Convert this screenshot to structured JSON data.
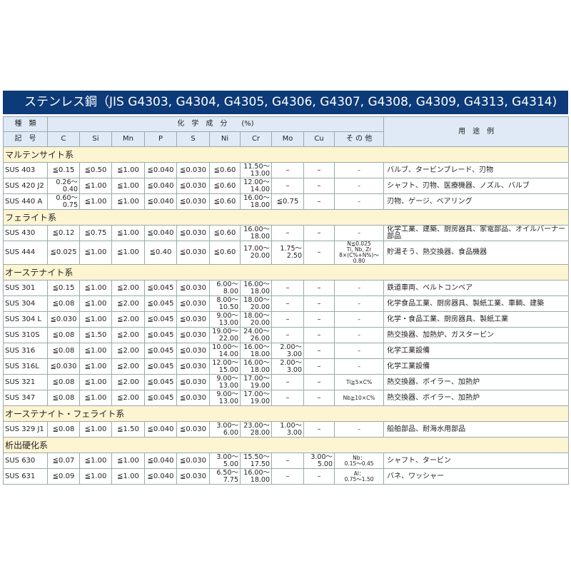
{
  "header": {
    "title": "ステンレス鋼（JIS G4303, G4304, G4305, G4306, G4307, G4308, G4309, G4313, G4314)"
  },
  "table": {
    "head": {
      "kind": "種　類",
      "code": "記　号",
      "composition": "化　学　成　分　　(%)",
      "use": "用　途　例",
      "columns": [
        "C",
        "Si",
        "Mn",
        "P",
        "S",
        "Ni",
        "Cr",
        "Mo",
        "Cu",
        "そ の 他"
      ]
    },
    "groups": [
      {
        "name": "マルテンサイト系",
        "rows": [
          [
            "SUS 403",
            "≦0.15",
            "≦0.50",
            "≦1.00",
            "≦0.040",
            "≦0.030",
            "≦0.60",
            "11.50〜\n13.00",
            "–",
            "–",
            "–",
            "バルブ、タービンブレード、刃物"
          ],
          [
            "SUS 420 J2",
            "0.26〜\n0.40",
            "≦1.00",
            "≦1.00",
            "≦0.040",
            "≦0.030",
            "≦0.60",
            "12.00〜\n14.00",
            "–",
            "–",
            "–",
            "シャフト、刃物、医療機器、ノズル、バルブ"
          ],
          [
            "SUS 440 A",
            "0.60〜\n0.75",
            "≦1.00",
            "≦1.00",
            "≦0.040",
            "≦0.030",
            "≦0.60",
            "16.00〜\n18.00",
            "≦0.75",
            "–",
            "–",
            "刃物、ゲージ、ベアリング"
          ]
        ]
      },
      {
        "name": "フェライト系",
        "rows": [
          [
            "SUS 430",
            "≦0.12",
            "≦0.75",
            "≦1.00",
            "≦0.040",
            "≦0.030",
            "≦0.60",
            "16.00〜\n18.00",
            "–",
            "–",
            "–",
            "化学工業、建築、厨房器具、家電部品、オイルバーナー部品"
          ],
          [
            "SUS 444",
            "≦0.025",
            "≦1.00",
            "≦1.00",
            "≦0.40",
            "≦0.030",
            "≦0.60",
            "17.00〜\n20.00",
            "1.75〜\n2.50",
            "–",
            "N≦0.025\nTi, Nb, Zr\n8×(C%+N%)〜0.80",
            "貯湯そう、熱交換器、食品機器"
          ]
        ]
      },
      {
        "name": "オーステナイト系",
        "rows": [
          [
            "SUS 301",
            "≦0.15",
            "≦1.00",
            "≦2.00",
            "≦0.045",
            "≦0.030",
            "6.00〜\n8.00",
            "16.00〜\n18.00",
            "–",
            "–",
            "–",
            "鉄道車両、ベルトコンベア"
          ],
          [
            "SUS 304",
            "≦0.08",
            "≦1.00",
            "≦2.00",
            "≦0.045",
            "≦0.030",
            "8.00〜\n10.50",
            "18.00〜\n20.00",
            "–",
            "–",
            "–",
            "化学食品工業、厨房器具、製紙工業、車輌、建築"
          ],
          [
            "SUS 304 L",
            "≦0.030",
            "≦1.00",
            "≦2.00",
            "≦0.045",
            "≦0.030",
            "9.00〜\n13.00",
            "18.00〜\n20.00",
            "–",
            "–",
            "–",
            "化学・食品工業、厨房器具、製紙工業"
          ],
          [
            "SUS 310S",
            "≦0.08",
            "≦1.50",
            "≦2.00",
            "≦0.045",
            "≦0.030",
            "19.00〜\n22.00",
            "24.00〜\n26.00",
            "–",
            "–",
            "–",
            "熱交換器、加熱炉、ガスタービン"
          ],
          [
            "SUS 316",
            "≦0.08",
            "≦1.00",
            "≦2.00",
            "≦0.045",
            "≦0.030",
            "10.00〜\n14.00",
            "16.00〜\n18.00",
            "2.00〜\n3.00",
            "–",
            "–",
            "化学工業設備"
          ],
          [
            "SUS 316L",
            "≦0.030",
            "≦1.00",
            "≦2.00",
            "≦0.045",
            "≦0.030",
            "12.00〜\n15.00",
            "16.00〜\n18.00",
            "2.00〜\n3.00",
            "–",
            "–",
            "化学工業設備"
          ],
          [
            "SUS 321",
            "≦0.08",
            "≦1.00",
            "≦2.00",
            "≦0.045",
            "≦0.030",
            "9.00〜\n13.00",
            "17.00〜\n19.00",
            "–",
            "–",
            "Ti≧5×C%",
            "熱交換器、ボイラー、加熱炉"
          ],
          [
            "SUS 347",
            "≦0.08",
            "≦1.00",
            "≦2.00",
            "≦0.045",
            "≦0.030",
            "9.00〜\n13.00",
            "17.00〜\n19.00",
            "–",
            "–",
            "Nb≧10×C%",
            "熱交換器、ボイラー、加熱炉"
          ]
        ]
      },
      {
        "name": "オーステナイト・フェライト系",
        "rows": [
          [
            "SUS 329 J1",
            "≦0.08",
            "≦1.00",
            "≦1.50",
            "≦0.040",
            "≦0.030",
            "3.00〜\n6.00",
            "23.00〜\n28.00",
            "1.00〜\n3.00",
            "–",
            "–",
            "船舶部品、耐海水用部品"
          ]
        ]
      },
      {
        "name": "析出硬化系",
        "rows": [
          [
            "SUS 630",
            "≦0.07",
            "≦1.00",
            "≦1.00",
            "≦0.040",
            "≦0.030",
            "3.00〜\n5.00",
            "15.50〜\n17.50",
            "–",
            "3.00〜\n5.00",
            "Nb：\n0.15〜0.45",
            "シャフト、タービン"
          ],
          [
            "SUS 631",
            "≦0.09",
            "≦1.00",
            "≦1.00",
            "≦0.040",
            "≦0.030",
            "6.50〜\n7.75",
            "16.00〜\n18.00",
            "–",
            "–",
            "Al：\n0.75〜1.50",
            "バネ、ワッシャー"
          ]
        ]
      }
    ]
  }
}
